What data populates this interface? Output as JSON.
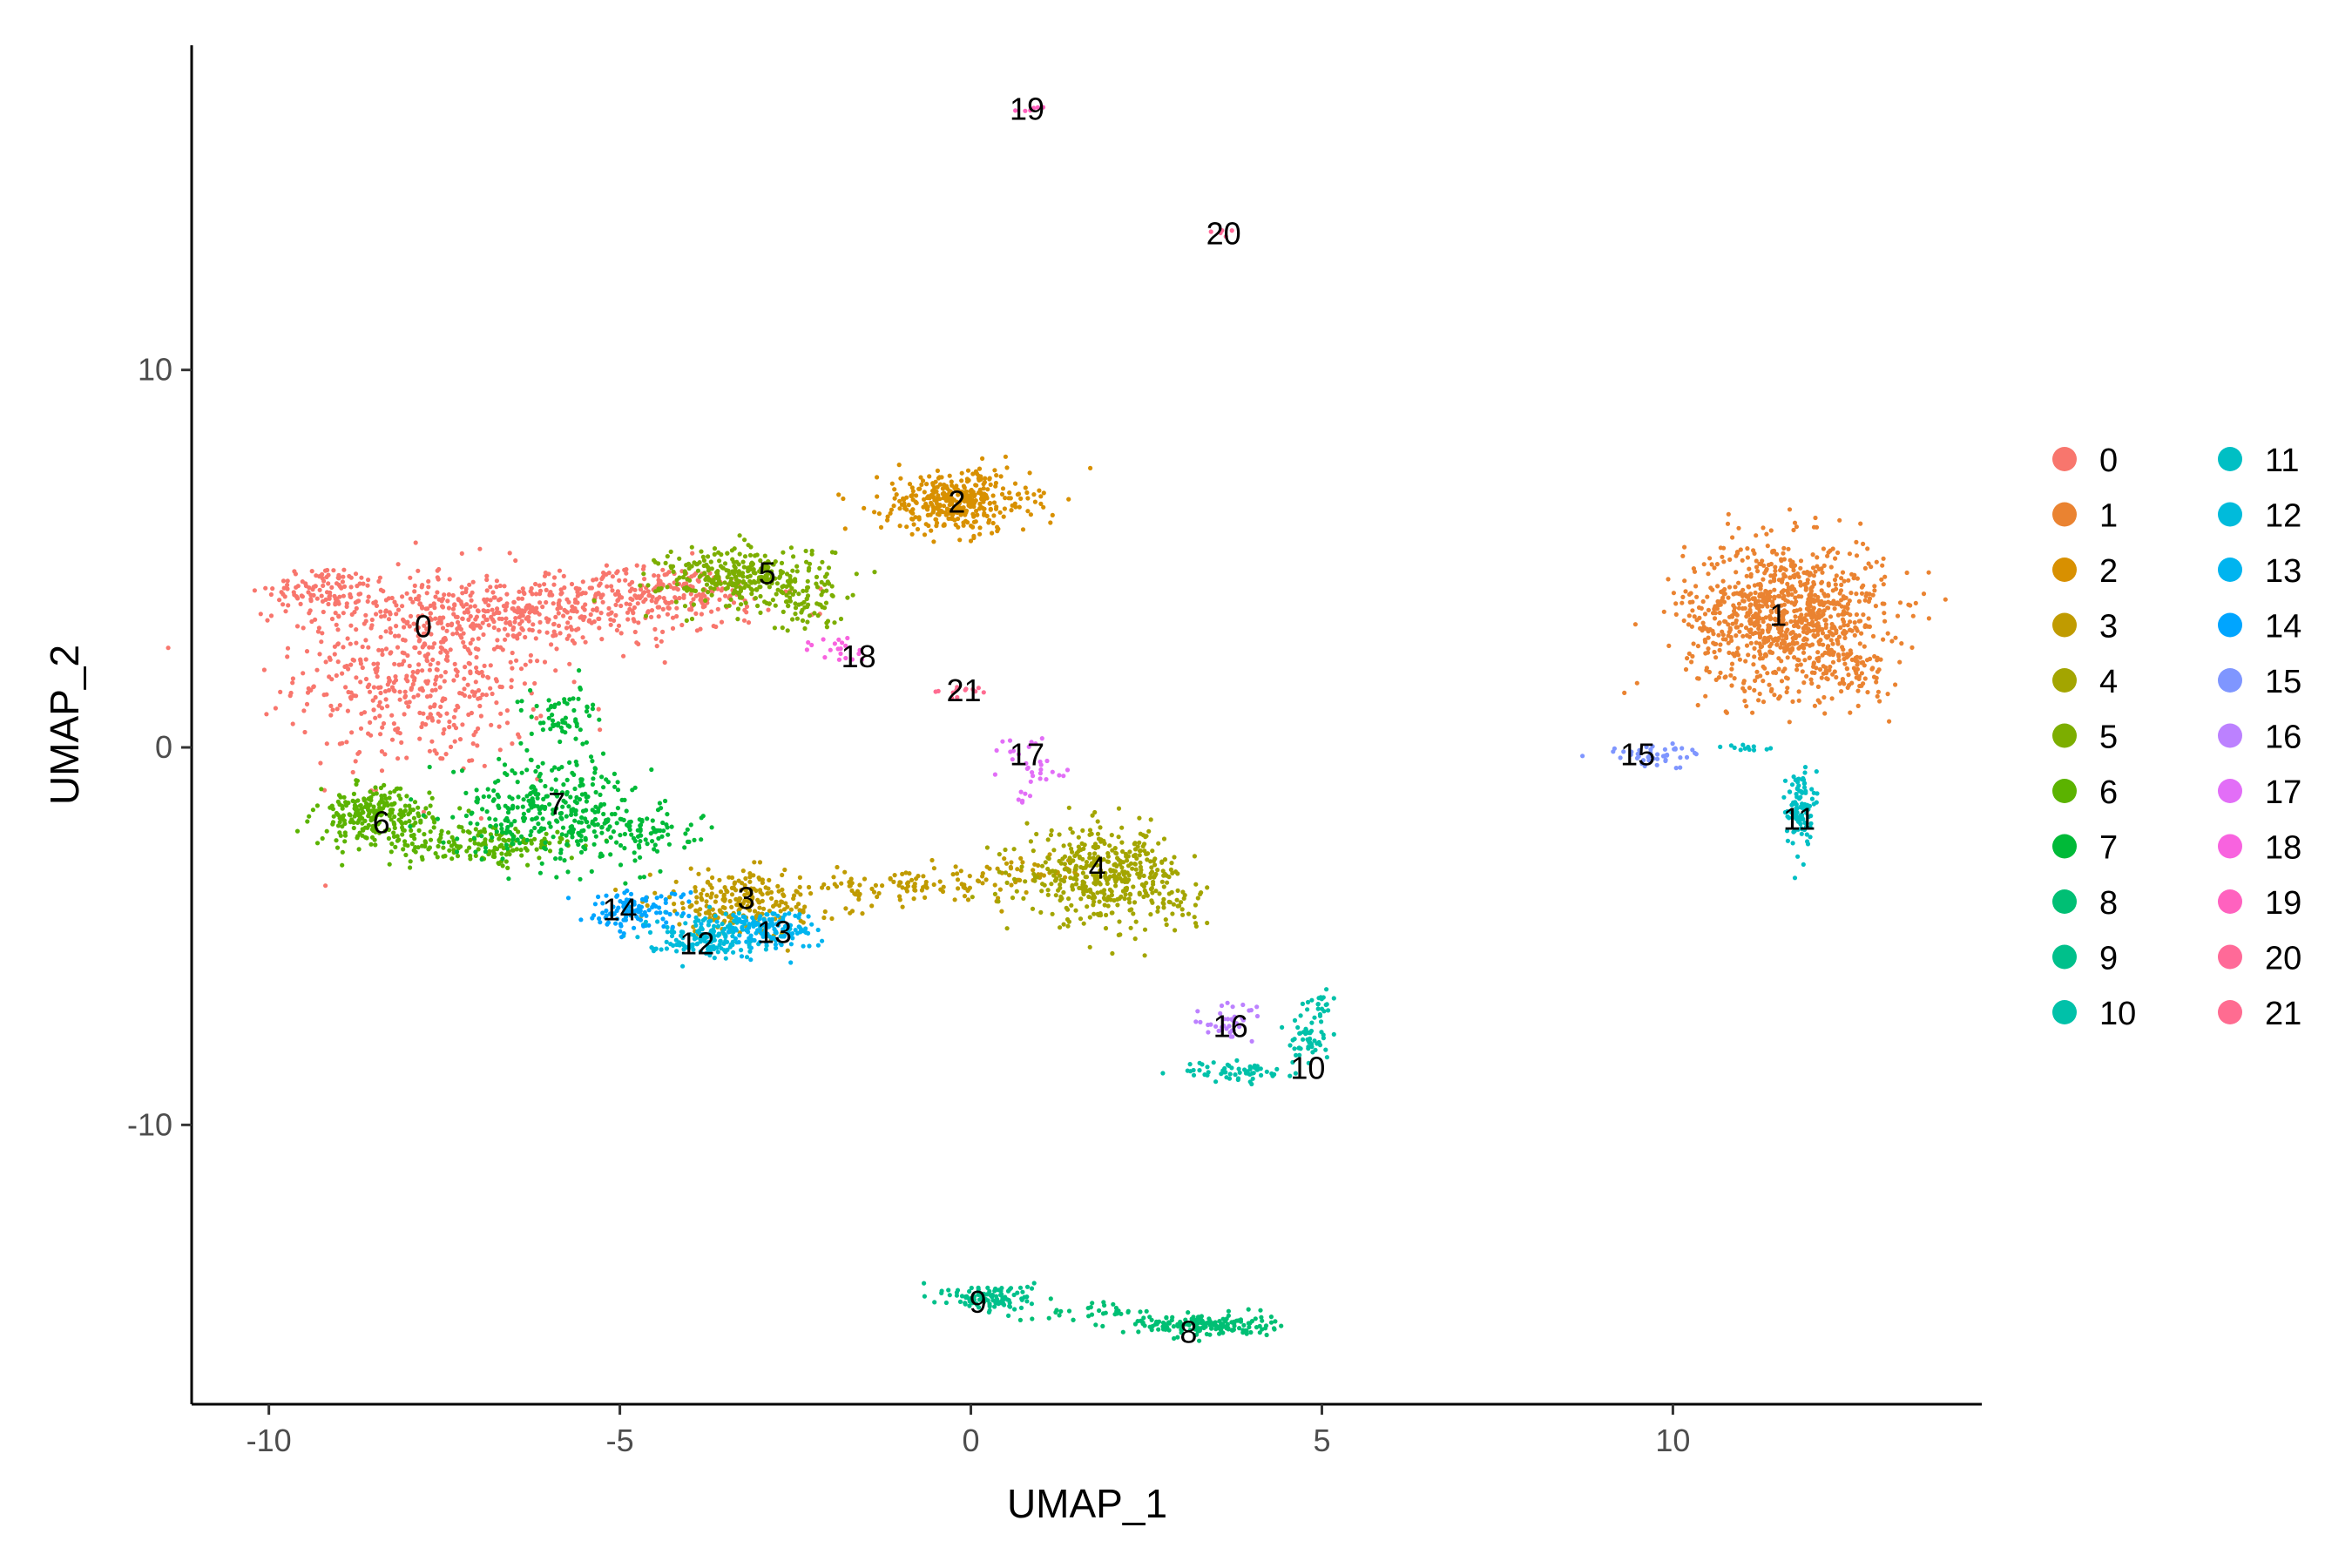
{
  "chart_data": {
    "type": "scatter",
    "title": "",
    "xlabel": "UMAP_1",
    "ylabel": "UMAP_2",
    "xlim": [
      -11.1,
      14.4
    ],
    "ylim": [
      -17.4,
      18.6
    ],
    "x_ticks": [
      -10,
      -5,
      0,
      5,
      10
    ],
    "y_ticks": [
      -10,
      0,
      10
    ],
    "x_tick_labels": [
      "-10",
      "-5",
      "0",
      "5",
      "10"
    ],
    "y_tick_labels": [
      "-10",
      "0",
      "10"
    ],
    "grid": false,
    "legend_position": "right",
    "series": [
      {
        "name": "0",
        "color": "#F8766D",
        "label_pos": [
          -7.8,
          3.2
        ],
        "blobs": [
          {
            "cx": -7.8,
            "cy": 2.0,
            "sx": 1.2,
            "sy": 1.8,
            "n": 520
          },
          {
            "cx": -6.2,
            "cy": 3.6,
            "sx": 1.8,
            "sy": 0.6,
            "n": 400
          },
          {
            "cx": -4.3,
            "cy": 4.2,
            "sx": 1.0,
            "sy": 0.4,
            "n": 160
          },
          {
            "cx": -9.2,
            "cy": 4.2,
            "sx": 0.5,
            "sy": 0.4,
            "n": 100
          }
        ]
      },
      {
        "name": "1",
        "color": "#EA8331",
        "label_pos": [
          11.5,
          3.5
        ],
        "blobs": [
          {
            "cx": 11.6,
            "cy": 3.5,
            "sx": 0.95,
            "sy": 1.3,
            "n": 950
          },
          {
            "cx": 12.6,
            "cy": 2.0,
            "sx": 0.4,
            "sy": 0.4,
            "n": 60
          }
        ]
      },
      {
        "name": "2",
        "color": "#D89000",
        "label_pos": [
          -0.2,
          6.5
        ],
        "blobs": [
          {
            "cx": -0.2,
            "cy": 6.5,
            "sx": 0.7,
            "sy": 0.55,
            "n": 380
          }
        ]
      },
      {
        "name": "3",
        "color": "#C09B00",
        "label_pos": [
          -3.2,
          -4.0
        ],
        "blobs": [
          {
            "cx": -3.2,
            "cy": -4.1,
            "sx": 0.9,
            "sy": 0.55,
            "n": 240
          },
          {
            "cx": -0.8,
            "cy": -3.7,
            "sx": 1.0,
            "sy": 0.25,
            "n": 90
          },
          {
            "cx": 0.8,
            "cy": -3.3,
            "sx": 0.6,
            "sy": 0.25,
            "n": 50
          }
        ]
      },
      {
        "name": "4",
        "color": "#A3A500",
        "label_pos": [
          1.8,
          -3.2
        ],
        "blobs": [
          {
            "cx": 1.9,
            "cy": -3.4,
            "sx": 0.75,
            "sy": 0.8,
            "n": 420
          },
          {
            "cx": 2.9,
            "cy": -4.2,
            "sx": 0.3,
            "sy": 0.35,
            "n": 30
          }
        ]
      },
      {
        "name": "5",
        "color": "#7CAE00",
        "label_pos": [
          -2.9,
          4.6
        ],
        "blobs": [
          {
            "cx": -3.2,
            "cy": 4.5,
            "sx": 0.8,
            "sy": 0.55,
            "n": 330
          },
          {
            "cx": -2.3,
            "cy": 3.6,
            "sx": 0.4,
            "sy": 0.35,
            "n": 40
          }
        ]
      },
      {
        "name": "6",
        "color": "#5BB300",
        "label_pos": [
          -8.4,
          -2.0
        ],
        "blobs": [
          {
            "cx": -8.5,
            "cy": -1.8,
            "sx": 0.55,
            "sy": 0.45,
            "n": 240
          },
          {
            "cx": -7.0,
            "cy": -2.6,
            "sx": 1.0,
            "sy": 0.35,
            "n": 170
          }
        ]
      },
      {
        "name": "7",
        "color": "#00BA38",
        "label_pos": [
          -5.9,
          -1.5
        ],
        "blobs": [
          {
            "cx": -6.0,
            "cy": -1.6,
            "sx": 0.9,
            "sy": 0.9,
            "n": 320
          },
          {
            "cx": -4.8,
            "cy": -2.2,
            "sx": 0.6,
            "sy": 0.45,
            "n": 90
          },
          {
            "cx": -5.8,
            "cy": 0.8,
            "sx": 0.4,
            "sy": 0.5,
            "n": 60
          }
        ]
      },
      {
        "name": "8",
        "color": "#00BF74",
        "label_pos": [
          3.1,
          -15.5
        ],
        "blobs": [
          {
            "cx": 3.3,
            "cy": -15.3,
            "sx": 0.65,
            "sy": 0.2,
            "n": 170
          },
          {
            "cx": 1.8,
            "cy": -14.9,
            "sx": 0.6,
            "sy": 0.18,
            "n": 30
          }
        ]
      },
      {
        "name": "9",
        "color": "#00C08B",
        "label_pos": [
          0.1,
          -14.7
        ],
        "blobs": [
          {
            "cx": 0.3,
            "cy": -14.6,
            "sx": 0.4,
            "sy": 0.25,
            "n": 120
          }
        ]
      },
      {
        "name": "10",
        "color": "#00C1A9",
        "label_pos": [
          4.8,
          -8.5
        ],
        "blobs": [
          {
            "cx": 3.8,
            "cy": -8.6,
            "sx": 0.5,
            "sy": 0.18,
            "n": 60
          },
          {
            "cx": 4.8,
            "cy": -7.7,
            "sx": 0.2,
            "sy": 0.45,
            "n": 50
          },
          {
            "cx": 5.0,
            "cy": -6.8,
            "sx": 0.15,
            "sy": 0.25,
            "n": 20
          }
        ]
      },
      {
        "name": "11",
        "color": "#00BFC4",
        "label_pos": [
          11.8,
          -1.9
        ],
        "blobs": [
          {
            "cx": 11.8,
            "cy": -1.6,
            "sx": 0.12,
            "sy": 0.7,
            "n": 110
          },
          {
            "cx": 11.0,
            "cy": 0.0,
            "sx": 0.3,
            "sy": 0.05,
            "n": 12
          }
        ]
      },
      {
        "name": "12",
        "color": "#00BBDB",
        "label_pos": [
          -3.9,
          -5.2
        ],
        "blobs": [
          {
            "cx": -3.8,
            "cy": -5.0,
            "sx": 0.55,
            "sy": 0.35,
            "n": 170
          }
        ]
      },
      {
        "name": "13",
        "color": "#00B4EF",
        "label_pos": [
          -2.8,
          -4.9
        ],
        "blobs": [
          {
            "cx": -2.9,
            "cy": -4.8,
            "sx": 0.45,
            "sy": 0.35,
            "n": 140
          }
        ]
      },
      {
        "name": "14",
        "color": "#00A5FF",
        "label_pos": [
          -5.0,
          -4.3
        ],
        "blobs": [
          {
            "cx": -4.8,
            "cy": -4.3,
            "sx": 0.5,
            "sy": 0.35,
            "n": 110
          }
        ]
      },
      {
        "name": "15",
        "color": "#7F96FF",
        "label_pos": [
          9.5,
          -0.2
        ],
        "blobs": [
          {
            "cx": 9.7,
            "cy": -0.2,
            "sx": 0.45,
            "sy": 0.2,
            "n": 45
          }
        ]
      },
      {
        "name": "16",
        "color": "#BC81FF",
        "label_pos": [
          3.7,
          -7.4
        ],
        "blobs": [
          {
            "cx": 3.7,
            "cy": -7.3,
            "sx": 0.35,
            "sy": 0.35,
            "n": 40
          }
        ]
      },
      {
        "name": "17",
        "color": "#E26EF7",
        "label_pos": [
          0.8,
          -0.2
        ],
        "blobs": [
          {
            "cx": 0.9,
            "cy": -0.6,
            "sx": 0.35,
            "sy": 0.6,
            "n": 35
          }
        ]
      },
      {
        "name": "18",
        "color": "#F863DF",
        "label_pos": [
          -1.6,
          2.4
        ],
        "blobs": [
          {
            "cx": -1.9,
            "cy": 2.6,
            "sx": 0.3,
            "sy": 0.3,
            "n": 20
          }
        ]
      },
      {
        "name": "19",
        "color": "#FF62BF",
        "label_pos": [
          0.8,
          16.9
        ],
        "blobs": [
          {
            "cx": 0.8,
            "cy": 16.9,
            "sx": 0.15,
            "sy": 0.07,
            "n": 6
          }
        ]
      },
      {
        "name": "20",
        "color": "#FF6A98",
        "label_pos": [
          3.6,
          13.6
        ],
        "blobs": [
          {
            "cx": 3.6,
            "cy": 13.6,
            "sx": 0.12,
            "sy": 0.07,
            "n": 5
          }
        ]
      },
      {
        "name": "21",
        "color": "#FF6C91",
        "label_pos": [
          -0.1,
          1.5
        ],
        "blobs": [
          {
            "cx": -0.2,
            "cy": 1.5,
            "sx": 0.3,
            "sy": 0.12,
            "n": 14
          }
        ]
      }
    ]
  }
}
